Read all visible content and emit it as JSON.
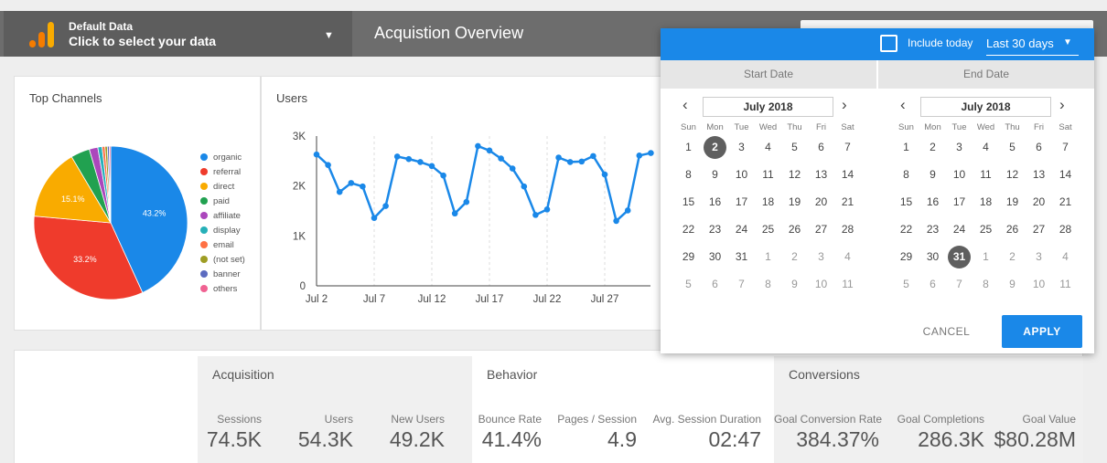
{
  "header": {
    "data_source_name": "Default Data",
    "data_source_hint": "Click to select your data",
    "report_title": "Acquistion Overview"
  },
  "top_channels": {
    "title": "Top Channels",
    "labels": {
      "organic": "43.2%",
      "referral": "33.2%",
      "direct": "15.1%"
    },
    "legend": [
      {
        "label": "organic",
        "color": "#1a88e8"
      },
      {
        "label": "referral",
        "color": "#ef3b2c"
      },
      {
        "label": "direct",
        "color": "#f9ab00"
      },
      {
        "label": "paid",
        "color": "#21a150"
      },
      {
        "label": "affiliate",
        "color": "#ab47bc"
      },
      {
        "label": "display",
        "color": "#26b0b8"
      },
      {
        "label": "email",
        "color": "#ff7043"
      },
      {
        "label": "(not set)",
        "color": "#9e9d24"
      },
      {
        "label": "banner",
        "color": "#5c6bc0"
      },
      {
        "label": "others",
        "color": "#f06292"
      }
    ]
  },
  "chart_data": [
    {
      "type": "pie",
      "title": "Top Channels",
      "categories": [
        "organic",
        "referral",
        "direct",
        "paid",
        "affiliate",
        "display",
        "email",
        "(not set)",
        "banner",
        "others"
      ],
      "values": [
        43.2,
        33.2,
        15.1,
        4.0,
        1.8,
        0.9,
        0.6,
        0.5,
        0.4,
        0.3
      ]
    },
    {
      "type": "line",
      "title": "Users",
      "x": [
        "Jul 2",
        "Jul 3",
        "Jul 4",
        "Jul 5",
        "Jul 6",
        "Jul 7",
        "Jul 8",
        "Jul 9",
        "Jul 10",
        "Jul 11",
        "Jul 12",
        "Jul 13",
        "Jul 14",
        "Jul 15",
        "Jul 16",
        "Jul 17",
        "Jul 18",
        "Jul 19",
        "Jul 20",
        "Jul 21",
        "Jul 22",
        "Jul 23",
        "Jul 24",
        "Jul 25",
        "Jul 26",
        "Jul 27",
        "Jul 28",
        "Jul 29",
        "Jul 30",
        "Jul 31"
      ],
      "xticks": [
        "Jul 2",
        "Jul 7",
        "Jul 12",
        "Jul 17",
        "Jul 22",
        "Jul 27"
      ],
      "series": [
        {
          "values": [
            2630,
            2420,
            1880,
            2060,
            1990,
            1360,
            1600,
            2590,
            2540,
            2480,
            2400,
            2210,
            1450,
            1680,
            2800,
            2710,
            2550,
            2350,
            1990,
            1420,
            1530,
            2570,
            2480,
            2490,
            2600,
            2230,
            1300,
            1510,
            2610,
            2660
          ]
        }
      ],
      "ylim": [
        0,
        3000
      ],
      "yticks": [
        "0",
        "1K",
        "2K",
        "3K"
      ],
      "color": "#1a88e8"
    }
  ],
  "users_chart": {
    "title": "Users"
  },
  "metrics": {
    "acquisition": {
      "title": "Acquisition",
      "items": [
        {
          "label": "Sessions",
          "value": "74.5K"
        },
        {
          "label": "Users",
          "value": "54.3K"
        },
        {
          "label": "New Users",
          "value": "49.2K"
        }
      ]
    },
    "behavior": {
      "title": "Behavior",
      "items": [
        {
          "label": "Bounce Rate",
          "value": "41.4%"
        },
        {
          "label": "Pages / Session",
          "value": "4.9"
        },
        {
          "label": "Avg. Session Duration",
          "value": "02:47"
        }
      ]
    },
    "conversions": {
      "title": "Conversions",
      "items": [
        {
          "label": "Goal Conversion Rate",
          "value": "384.37%"
        },
        {
          "label": "Goal Completions",
          "value": "286.3K"
        },
        {
          "label": "Goal Value",
          "value": "$80.28M"
        }
      ]
    }
  },
  "date_picker": {
    "include_today_label": "Include today",
    "include_today_checked": false,
    "range_value": "Last 30 days",
    "start_header": "Start Date",
    "end_header": "End Date",
    "weekdays": [
      "Sun",
      "Mon",
      "Tue",
      "Wed",
      "Thu",
      "Fri",
      "Sat"
    ],
    "start": {
      "month_label": "July 2018",
      "selected": "2",
      "weeks": [
        [
          "1",
          "2",
          "3",
          "4",
          "5",
          "6",
          "7"
        ],
        [
          "8",
          "9",
          "10",
          "11",
          "12",
          "13",
          "14"
        ],
        [
          "15",
          "16",
          "17",
          "18",
          "19",
          "20",
          "21"
        ],
        [
          "22",
          "23",
          "24",
          "25",
          "26",
          "27",
          "28"
        ],
        [
          "29",
          "30",
          "31",
          "1",
          "2",
          "3",
          "4"
        ],
        [
          "5",
          "6",
          "7",
          "8",
          "9",
          "10",
          "11"
        ]
      ]
    },
    "end": {
      "month_label": "July 2018",
      "selected": "31",
      "weeks": [
        [
          "1",
          "2",
          "3",
          "4",
          "5",
          "6",
          "7"
        ],
        [
          "8",
          "9",
          "10",
          "11",
          "12",
          "13",
          "14"
        ],
        [
          "15",
          "16",
          "17",
          "18",
          "19",
          "20",
          "21"
        ],
        [
          "22",
          "23",
          "24",
          "25",
          "26",
          "27",
          "28"
        ],
        [
          "29",
          "30",
          "31",
          "1",
          "2",
          "3",
          "4"
        ],
        [
          "5",
          "6",
          "7",
          "8",
          "9",
          "10",
          "11"
        ]
      ]
    },
    "cancel_label": "CANCEL",
    "apply_label": "APPLY"
  }
}
